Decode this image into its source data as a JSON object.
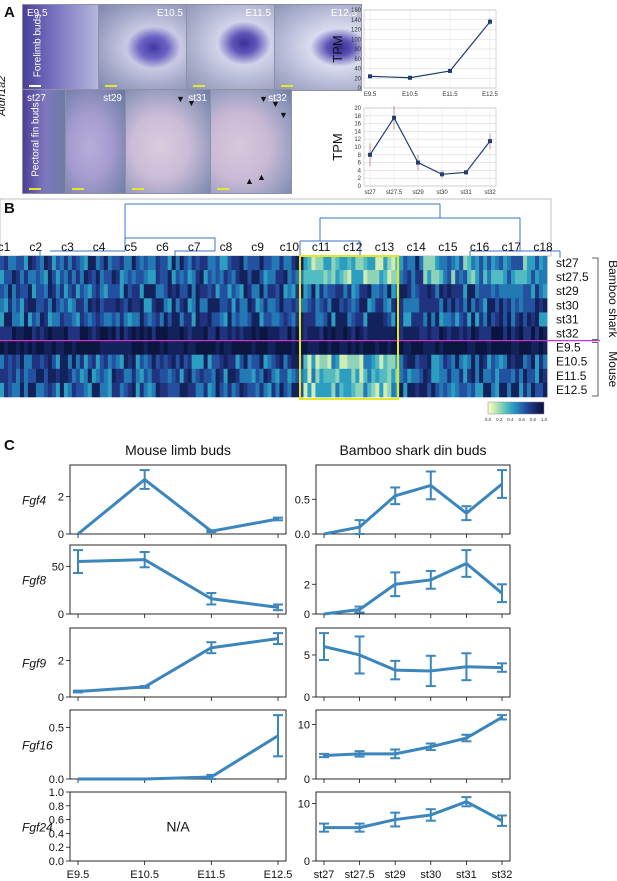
{
  "panels": {
    "a": "A",
    "b": "B",
    "c": "C"
  },
  "panel_a": {
    "gene_label": "Aldh1a2",
    "forelimb_row_label": "Forelimb buds",
    "pectoral_row_label": "Pectoral fin buds",
    "forelimb_photos": [
      "E9.5",
      "E10.5",
      "E11.5",
      "E12.5"
    ],
    "fin_photos": [
      "st27",
      "st29",
      "st31",
      "st32"
    ],
    "scale_bar_colors": {
      "white": "#ffffff",
      "yellow": "#e5e52a"
    }
  },
  "chart_data": [
    {
      "id": "a-mouse-tpm",
      "type": "line",
      "x": [
        "E9.5",
        "E10.5",
        "E11.5",
        "E12.5"
      ],
      "series": [
        {
          "values": [
            24,
            21,
            35,
            136
          ],
          "errors": [
            2,
            2,
            2,
            7
          ]
        }
      ],
      "ylabel": "TPM",
      "ylim": [
        0,
        160
      ],
      "yticks": [
        0,
        20,
        40,
        60,
        80,
        100,
        120,
        140,
        160
      ],
      "grid": true,
      "color": "#1f3f73"
    },
    {
      "id": "a-shark-tpm",
      "type": "line",
      "x": [
        "st27",
        "st27.5",
        "st29",
        "st30",
        "st31",
        "st32"
      ],
      "series": [
        {
          "values": [
            8,
            17.5,
            6,
            3,
            3.5,
            11.5
          ],
          "errors": [
            3,
            3,
            2,
            1,
            0.3,
            2
          ]
        }
      ],
      "ylabel": "TPM",
      "ylim": [
        0,
        20
      ],
      "yticks": [
        0,
        2,
        4,
        6,
        8,
        10,
        12,
        14,
        16,
        18,
        20
      ],
      "grid": true,
      "color": "#1f3f73"
    },
    {
      "id": "b-heatmap",
      "type": "heatmap",
      "clusters": [
        "c1",
        "c2",
        "c3",
        "c4",
        "c5",
        "c6",
        "c7",
        "c8",
        "c9",
        "c10",
        "c11",
        "c12",
        "c13",
        "c14",
        "c15",
        "c16",
        "c17",
        "c18"
      ],
      "rows": [
        "st27",
        "st27.5",
        "st29",
        "st30",
        "st31",
        "st32",
        "E9.5",
        "E10.5",
        "E11.5",
        "E12.5"
      ],
      "groups": [
        {
          "label": "Bamboo shark",
          "rows": 6
        },
        {
          "label": "Mouse",
          "rows": 4
        }
      ],
      "colorbar_ticks": [
        "0.0",
        "0.2",
        "0.4",
        "0.6",
        "0.8",
        "1.0"
      ],
      "highlight_color": "#e5e52a",
      "divider_color": "#cc33cc"
    },
    {
      "id": "c-grid",
      "type": "line",
      "columns": [
        "Mouse limb buds",
        "Bamboo shark din buds"
      ],
      "mouse_x": [
        "E9.5",
        "E10.5",
        "E11.5",
        "E12.5"
      ],
      "shark_x": [
        "st27",
        "st27.5",
        "st29",
        "st30",
        "st31",
        "st32"
      ],
      "line_color": "#3b86bd",
      "genes": [
        {
          "name": "Fgf4",
          "mouse": {
            "values": [
              0,
              2.9,
              0.15,
              0.8
            ],
            "errors": [
              0,
              0.5,
              0.05,
              0.07
            ],
            "yticks": [
              0,
              2
            ]
          },
          "shark": {
            "values": [
              0,
              0.1,
              0.55,
              0.7,
              0.3,
              0.72
            ],
            "errors": [
              0,
              0.1,
              0.12,
              0.2,
              0.1,
              0.2
            ],
            "yticks": [
              0.0,
              0.5
            ]
          }
        },
        {
          "name": "Fgf8",
          "mouse": {
            "values": [
              55,
              57,
              16,
              7
            ],
            "errors": [
              12,
              8,
              6,
              3
            ],
            "yticks": [
              0,
              50
            ]
          },
          "shark": {
            "values": [
              0,
              0.3,
              2.0,
              2.3,
              3.4,
              1.4
            ],
            "errors": [
              0,
              0.2,
              0.8,
              0.6,
              0.9,
              0.6
            ],
            "yticks": [
              0,
              2
            ]
          }
        },
        {
          "name": "Fgf9",
          "mouse": {
            "values": [
              0.3,
              0.55,
              2.7,
              3.2
            ],
            "errors": [
              0.05,
              0.05,
              0.3,
              0.3
            ],
            "yticks": [
              0,
              2
            ]
          },
          "shark": {
            "values": [
              6,
              5,
              3.2,
              3.1,
              3.6,
              3.5
            ],
            "errors": [
              1.6,
              2.2,
              1.1,
              1.8,
              1.6,
              0.5
            ],
            "yticks": [
              0,
              5
            ]
          }
        },
        {
          "name": "Fgf16",
          "mouse": {
            "values": [
              0,
              0,
              0.02,
              0.42
            ],
            "errors": [
              0,
              0,
              0.02,
              0.2
            ],
            "yticks": [
              0.0,
              0.5
            ]
          },
          "shark": {
            "values": [
              4.3,
              4.6,
              4.6,
              5.9,
              7.5,
              11.3
            ],
            "errors": [
              0.3,
              0.5,
              0.8,
              0.6,
              0.6,
              0.4
            ],
            "yticks": [
              0,
              10
            ]
          }
        },
        {
          "name": "Fgf24",
          "mouse": {
            "na_text": "N/A",
            "yticks": [
              0.0,
              0.2,
              0.4,
              0.6,
              0.8,
              1.0
            ]
          },
          "shark": {
            "values": [
              5.8,
              5.8,
              7.2,
              8.0,
              10.3,
              7.0
            ],
            "errors": [
              0.7,
              0.7,
              1.2,
              1.0,
              0.8,
              0.9
            ],
            "yticks": [
              0,
              10
            ]
          }
        }
      ]
    }
  ]
}
